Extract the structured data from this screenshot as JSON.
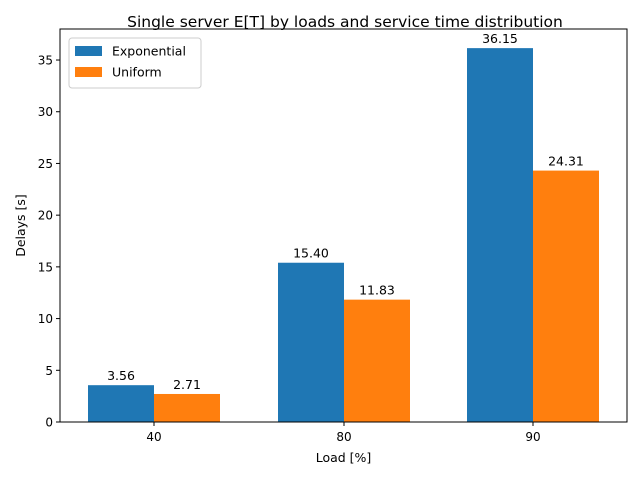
{
  "chart_data": {
    "type": "bar",
    "title": "Single server E[T] by loads and service time distribution",
    "xlabel": "Load [%]",
    "ylabel": "Delays [s]",
    "categories": [
      "40",
      "80",
      "90"
    ],
    "series": [
      {
        "name": "Exponential",
        "color": "#1f77b4",
        "values": [
          3.56,
          15.4,
          36.15
        ],
        "labels": [
          "3.56",
          "15.40",
          "36.15"
        ]
      },
      {
        "name": "Uniform",
        "color": "#ff7f0e",
        "values": [
          2.71,
          11.83,
          24.31
        ],
        "labels": [
          "2.71",
          "11.83",
          "24.31"
        ]
      }
    ],
    "ylim": [
      0,
      38
    ],
    "yticks": [
      0,
      5,
      10,
      15,
      20,
      25,
      30,
      35
    ],
    "grid": false,
    "legend_position": "top-left"
  }
}
